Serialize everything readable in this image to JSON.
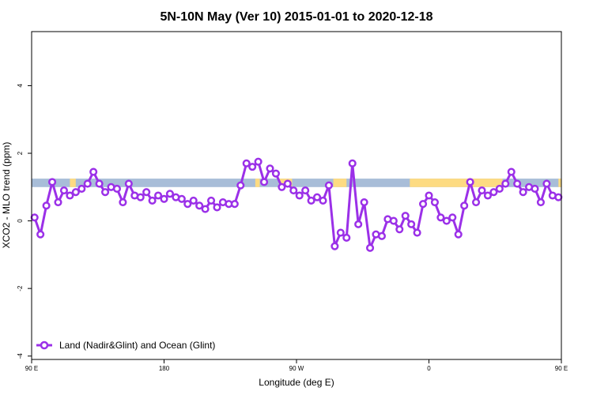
{
  "chart_data": {
    "type": "line",
    "title": "5N-10N May (Ver 10)   2015-01-01 to 2020-12-18",
    "xlabel": "Longitude (deg E)",
    "ylabel": "XCO2 - MLO trend (ppm)",
    "xlim": [
      0,
      360
    ],
    "ylim": [
      -4.1,
      5.6
    ],
    "x_ticks": [
      {
        "value": 0,
        "label": "90 E"
      },
      {
        "value": 90,
        "label": "180"
      },
      {
        "value": 180,
        "label": "90 W"
      },
      {
        "value": 270,
        "label": "0"
      },
      {
        "value": 360,
        "label": "90 E"
      }
    ],
    "y_ticks": [
      {
        "value": -4,
        "label": "-4"
      },
      {
        "value": -2,
        "label": "-2"
      },
      {
        "value": 0,
        "label": "0"
      },
      {
        "value": 2,
        "label": "2"
      },
      {
        "value": 4,
        "label": "4"
      }
    ],
    "land_mask_band": {
      "y_range": [
        1.0,
        1.25
      ],
      "ocean_color": "#a8bdd8",
      "land_color": "#fddb82",
      "land_segments": [
        [
          26,
          30
        ],
        [
          152,
          155
        ],
        [
          168,
          177
        ],
        [
          205,
          214
        ],
        [
          257,
          320
        ],
        [
          358,
          360
        ]
      ]
    },
    "legend": {
      "position": "bottom-left"
    },
    "series": [
      {
        "name": "Land (Nadir&Glint) and Ocean (Glint)",
        "color": "#9b30e8",
        "x": [
          2,
          6,
          10,
          14,
          18,
          22,
          26,
          30,
          34,
          38,
          42,
          46,
          50,
          54,
          58,
          62,
          66,
          70,
          74,
          78,
          82,
          86,
          90,
          94,
          98,
          102,
          106,
          110,
          114,
          118,
          122,
          126,
          130,
          134,
          138,
          142,
          146,
          150,
          154,
          158,
          162,
          166,
          170,
          174,
          178,
          182,
          186,
          190,
          194,
          198,
          202,
          206,
          210,
          214,
          218,
          222,
          226,
          230,
          234,
          238,
          242,
          246,
          250,
          254,
          258,
          262,
          266,
          270,
          274,
          278,
          282,
          286,
          290,
          294,
          298,
          302,
          306,
          310,
          314,
          318,
          322,
          326,
          330,
          334,
          338,
          342,
          346,
          350,
          354,
          358
        ],
        "y": [
          0.1,
          -0.4,
          0.45,
          1.15,
          0.55,
          0.9,
          0.75,
          0.85,
          0.95,
          1.1,
          1.45,
          1.1,
          0.85,
          1.0,
          0.95,
          0.55,
          1.1,
          0.75,
          0.7,
          0.85,
          0.6,
          0.75,
          0.65,
          0.8,
          0.7,
          0.65,
          0.5,
          0.6,
          0.45,
          0.35,
          0.6,
          0.4,
          0.55,
          0.5,
          0.5,
          1.05,
          1.7,
          1.6,
          1.75,
          1.15,
          1.55,
          1.4,
          1.0,
          1.1,
          0.9,
          0.75,
          0.9,
          0.6,
          0.7,
          0.6,
          1.05,
          -0.75,
          -0.35,
          -0.5,
          1.7,
          -0.1,
          0.55,
          -0.8,
          -0.4,
          -0.45,
          0.05,
          0.0,
          -0.25,
          0.15,
          -0.1,
          -0.35,
          0.5,
          0.75,
          0.55,
          0.1,
          0.0,
          0.1,
          -0.4,
          0.45,
          1.15,
          0.55,
          0.9,
          0.75,
          0.85,
          0.95,
          1.1,
          1.45,
          1.1,
          0.85,
          1.0,
          0.95,
          0.55,
          1.1,
          0.75,
          0.7
        ]
      }
    ]
  }
}
